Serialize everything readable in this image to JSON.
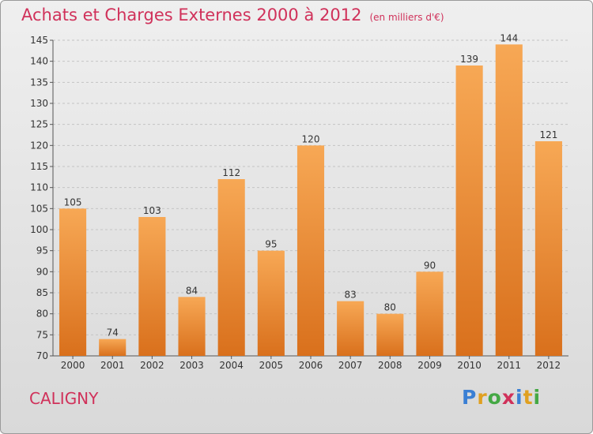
{
  "title": "Achats et Charges Externes 2000 à 2012",
  "unit": "(en milliers d'€)",
  "commune": "CALIGNY",
  "logo": {
    "text": "Proxiti",
    "letters": [
      {
        "ch": "P",
        "color": "#3a7fd4"
      },
      {
        "ch": "r",
        "color": "#e0a020"
      },
      {
        "ch": "o",
        "color": "#44a844"
      },
      {
        "ch": "x",
        "color": "#d0315a"
      },
      {
        "ch": "i",
        "color": "#3a7fd4"
      },
      {
        "ch": "t",
        "color": "#e0a020"
      },
      {
        "ch": "i",
        "color": "#44a844"
      }
    ]
  },
  "colors": {
    "title": "#d0315a",
    "bar_light": "#f7a855",
    "bar_dark": "#d9701c",
    "axis": "#555555"
  },
  "chart_data": {
    "type": "bar",
    "categories": [
      "2000",
      "2001",
      "2002",
      "2003",
      "2004",
      "2005",
      "2006",
      "2007",
      "2008",
      "2009",
      "2010",
      "2011",
      "2012"
    ],
    "values": [
      105,
      74,
      103,
      84,
      112,
      95,
      120,
      83,
      80,
      90,
      139,
      144,
      121
    ],
    "data_labels": [
      "105",
      "74",
      "103",
      "84",
      "112",
      "95",
      "120",
      "83",
      "80",
      "90",
      "139",
      "144",
      "121"
    ],
    "ylim": [
      70,
      145
    ],
    "yticks": [
      70,
      75,
      80,
      85,
      90,
      95,
      100,
      105,
      110,
      115,
      120,
      125,
      130,
      135,
      140,
      145
    ],
    "grid": true,
    "xlabel": "",
    "ylabel": ""
  }
}
